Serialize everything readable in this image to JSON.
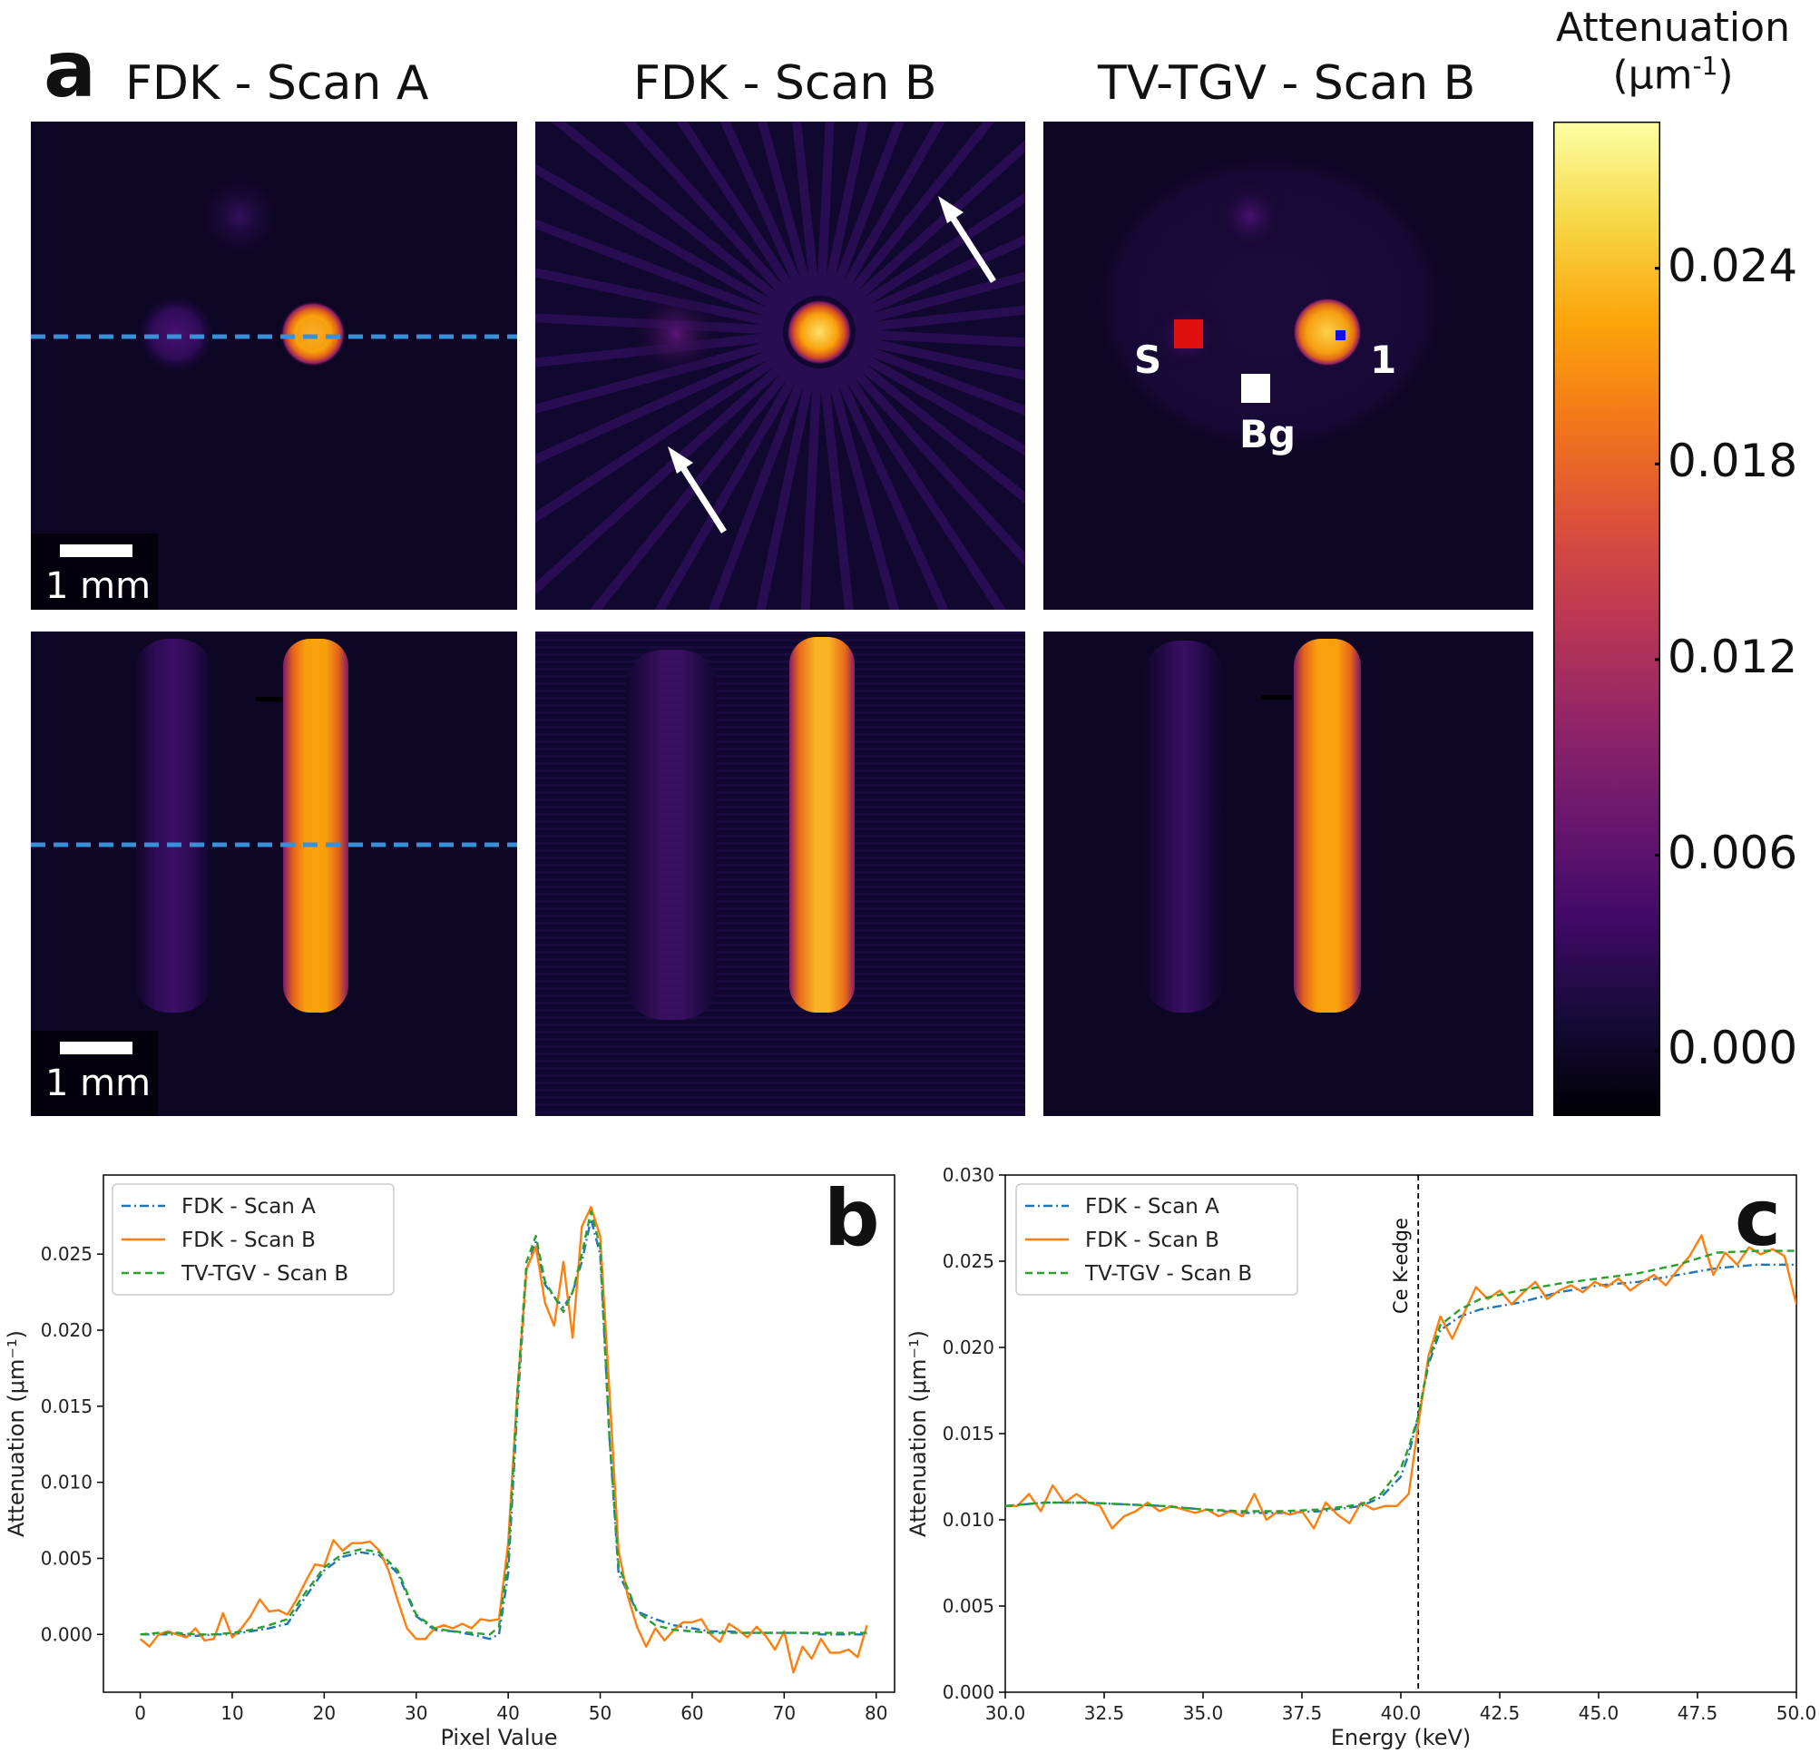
{
  "panel_a": {
    "letter": "a",
    "titles": [
      "FDK - Scan A",
      "FDK - Scan B",
      "TV-TGV - Scan B"
    ],
    "scale_bar_label": "1 mm",
    "roi_labels": {
      "sample": "S",
      "one": "1",
      "background": "Bg"
    },
    "colorbar": {
      "title_line1": "Attenuation",
      "title_line2": "(μm",
      "title_sup": "-1",
      "title_close": ")",
      "ticks": [
        "0.024",
        "0.018",
        "0.012",
        "0.006",
        "0.000"
      ],
      "tick_values": [
        0.024,
        0.018,
        0.012,
        0.006,
        0.0
      ],
      "range": [
        -0.002,
        0.0285
      ],
      "colormap": "inferno"
    },
    "colors": {
      "profile_line": "#3a8fd6",
      "roi_sample": "#e01010",
      "roi_one": "#1010e0",
      "roi_bg": "#ffffff"
    }
  },
  "chart_data": [
    {
      "panel": "b",
      "type": "line",
      "title": "",
      "xlabel": "Pixel Value",
      "ylabel": "Attenuation (μm⁻¹)",
      "xlim": [
        -4,
        82
      ],
      "ylim": [
        -0.0038,
        0.0302
      ],
      "xticks": [
        0,
        10,
        20,
        30,
        40,
        50,
        60,
        70,
        80
      ],
      "xtick_labels": [
        "0",
        "10",
        "20",
        "30",
        "40",
        "50",
        "60",
        "70",
        "80"
      ],
      "yticks": [
        0.0,
        0.005,
        0.01,
        0.015,
        0.02,
        0.025
      ],
      "ytick_labels": [
        "0.000",
        "0.005",
        "0.010",
        "0.015",
        "0.020",
        "0.025"
      ],
      "legend_position": "top-left",
      "series": [
        {
          "name": "FDK - Scan A",
          "color": "#1f77b4",
          "dash": "dashdot",
          "x": [
            0,
            2,
            4,
            6,
            8,
            10,
            12,
            14,
            16,
            18,
            20,
            22,
            24,
            26,
            28,
            30,
            32,
            34,
            36,
            38,
            39,
            40,
            41,
            42,
            43,
            44,
            45,
            46,
            47,
            48,
            49,
            50,
            51,
            52,
            54,
            56,
            58,
            60,
            62,
            64,
            66,
            68,
            70,
            72,
            74,
            76,
            78,
            79
          ],
          "y": [
            0.0,
            0.0,
            0.0,
            -0.0001,
            0.0,
            0.0,
            0.0002,
            0.0004,
            0.0007,
            0.0025,
            0.0042,
            0.0051,
            0.0054,
            0.0052,
            0.004,
            0.0012,
            0.0003,
            0.0002,
            0.0,
            -0.0003,
            0.0,
            0.004,
            0.015,
            0.024,
            0.0258,
            0.023,
            0.0222,
            0.0215,
            0.0225,
            0.0245,
            0.0273,
            0.025,
            0.013,
            0.004,
            0.0015,
            0.001,
            0.0006,
            0.0004,
            0.0002,
            0.0002,
            0.0001,
            0.0001,
            0.0001,
            0.0001,
            0.0,
            0.0,
            0.0,
            0.0
          ]
        },
        {
          "name": "FDK - Scan B",
          "color": "#ff7f0e",
          "dash": "solid",
          "x": [
            0,
            1,
            2,
            3,
            4,
            5,
            6,
            7,
            8,
            9,
            10,
            11,
            12,
            13,
            14,
            15,
            16,
            17,
            18,
            19,
            20,
            21,
            22,
            23,
            24,
            25,
            26,
            27,
            28,
            29,
            30,
            31,
            32,
            33,
            34,
            35,
            36,
            37,
            38,
            39,
            40,
            41,
            42,
            43,
            44,
            45,
            46,
            47,
            48,
            49,
            50,
            51,
            52,
            53,
            54,
            55,
            56,
            57,
            58,
            59,
            60,
            61,
            62,
            63,
            64,
            65,
            66,
            67,
            68,
            69,
            70,
            71,
            72,
            73,
            74,
            75,
            76,
            77,
            78,
            79
          ],
          "y": [
            -0.0003,
            -0.0008,
            0.0,
            0.0002,
            0.0,
            -0.0002,
            0.0004,
            -0.0004,
            -0.0003,
            0.0014,
            -0.0002,
            0.0004,
            0.0012,
            0.0023,
            0.0015,
            0.0016,
            0.0013,
            0.0023,
            0.0035,
            0.0046,
            0.0045,
            0.0062,
            0.0055,
            0.006,
            0.006,
            0.0061,
            0.0055,
            0.0042,
            0.0022,
            0.0004,
            -0.0003,
            -0.0003,
            0.0004,
            0.0006,
            0.0004,
            0.0007,
            0.0004,
            0.001,
            0.0009,
            0.001,
            0.006,
            0.016,
            0.024,
            0.0255,
            0.0218,
            0.0203,
            0.0245,
            0.0195,
            0.0268,
            0.0281,
            0.0262,
            0.016,
            0.0055,
            0.0025,
            0.0005,
            -0.0008,
            0.0004,
            -0.0004,
            0.0003,
            0.0008,
            0.0008,
            0.001,
            0.0,
            -0.0005,
            0.0007,
            0.0003,
            -0.0002,
            0.0005,
            -0.0001,
            -0.001,
            0.0002,
            -0.0025,
            -0.0008,
            -0.0016,
            -0.0003,
            -0.0012,
            -0.0012,
            -0.001,
            -0.0015,
            0.0006
          ]
        },
        {
          "name": "TV-TGV - Scan B",
          "color": "#2ca02c",
          "dash": "dashed",
          "x": [
            0,
            2,
            4,
            6,
            8,
            10,
            12,
            14,
            16,
            18,
            20,
            22,
            24,
            26,
            28,
            30,
            32,
            34,
            36,
            38,
            39,
            40,
            41,
            42,
            43,
            44,
            45,
            46,
            47,
            48,
            49,
            50,
            51,
            52,
            54,
            56,
            58,
            60,
            62,
            64,
            66,
            68,
            70,
            72,
            74,
            76,
            78,
            79
          ],
          "y": [
            0.0,
            0.0001,
            0.0001,
            0.0,
            0.0,
            0.0001,
            0.0003,
            0.0006,
            0.001,
            0.0028,
            0.0044,
            0.0053,
            0.0056,
            0.0054,
            0.0042,
            0.0013,
            0.0004,
            0.0002,
            0.0001,
            0.0,
            0.0005,
            0.005,
            0.016,
            0.0245,
            0.0262,
            0.0232,
            0.0222,
            0.0212,
            0.0225,
            0.025,
            0.0278,
            0.0255,
            0.013,
            0.0045,
            0.0015,
            0.0006,
            0.0003,
            0.0002,
            0.0001,
            0.0001,
            0.0001,
            0.0001,
            0.0001,
            0.0001,
            0.0001,
            0.0001,
            0.0001,
            0.0001
          ]
        }
      ]
    },
    {
      "panel": "c",
      "type": "line",
      "title": "",
      "xlabel": "Energy (keV)",
      "ylabel": "Attenuation (μm⁻¹)",
      "xlim": [
        30.0,
        50.0
      ],
      "ylim": [
        0.0,
        0.03
      ],
      "xticks": [
        30.0,
        32.5,
        35.0,
        37.5,
        40.0,
        42.5,
        45.0,
        47.5,
        50.0
      ],
      "xtick_labels": [
        "30.0",
        "32.5",
        "35.0",
        "37.5",
        "40.0",
        "42.5",
        "45.0",
        "47.5",
        "50.0"
      ],
      "yticks": [
        0.0,
        0.005,
        0.01,
        0.015,
        0.02,
        0.025,
        0.03
      ],
      "ytick_labels": [
        "0.000",
        "0.005",
        "0.010",
        "0.015",
        "0.020",
        "0.025",
        "0.030"
      ],
      "legend_position": "top-left",
      "vline": {
        "x": 40.44,
        "label": "Ce K-edge"
      },
      "series": [
        {
          "name": "FDK - Scan A",
          "color": "#1f77b4",
          "dash": "dashdot",
          "x": [
            30,
            31,
            32,
            33,
            34,
            35,
            36,
            37,
            38,
            39,
            39.5,
            40,
            40.2,
            40.44,
            40.7,
            41,
            41.5,
            42,
            43,
            44,
            45,
            46,
            47,
            48,
            49,
            50
          ],
          "y": [
            0.0108,
            0.011,
            0.011,
            0.0109,
            0.0108,
            0.0106,
            0.0104,
            0.0104,
            0.0105,
            0.0108,
            0.0113,
            0.0125,
            0.0138,
            0.016,
            0.019,
            0.021,
            0.0218,
            0.0222,
            0.0226,
            0.0232,
            0.0236,
            0.0238,
            0.0242,
            0.0246,
            0.0248,
            0.0248
          ]
        },
        {
          "name": "FDK - Scan B",
          "color": "#ff7f0e",
          "dash": "solid",
          "x": [
            30,
            30.3,
            30.6,
            30.9,
            31.2,
            31.5,
            31.8,
            32.1,
            32.4,
            32.7,
            33,
            33.3,
            33.6,
            33.9,
            34.2,
            34.5,
            34.8,
            35.1,
            35.4,
            35.7,
            36,
            36.3,
            36.6,
            36.9,
            37.2,
            37.5,
            37.8,
            38.1,
            38.4,
            38.7,
            39,
            39.3,
            39.6,
            39.9,
            40.2,
            40.44,
            40.7,
            41,
            41.3,
            41.6,
            41.9,
            42.2,
            42.5,
            42.8,
            43.1,
            43.4,
            43.7,
            44,
            44.3,
            44.6,
            44.9,
            45.2,
            45.5,
            45.8,
            46.1,
            46.4,
            46.7,
            47,
            47.3,
            47.6,
            47.9,
            48.2,
            48.5,
            48.8,
            49.1,
            49.4,
            49.7,
            50
          ],
          "y": [
            0.0108,
            0.0108,
            0.0115,
            0.0105,
            0.012,
            0.011,
            0.0115,
            0.011,
            0.0108,
            0.0095,
            0.0102,
            0.0105,
            0.011,
            0.0105,
            0.0108,
            0.0106,
            0.0104,
            0.0106,
            0.0102,
            0.0105,
            0.0102,
            0.0115,
            0.01,
            0.0105,
            0.0103,
            0.0105,
            0.0095,
            0.011,
            0.0103,
            0.0098,
            0.011,
            0.0106,
            0.0108,
            0.0108,
            0.0115,
            0.0155,
            0.0195,
            0.0218,
            0.0205,
            0.022,
            0.0235,
            0.0228,
            0.0233,
            0.0225,
            0.0232,
            0.0238,
            0.0228,
            0.0233,
            0.0236,
            0.0232,
            0.0238,
            0.0235,
            0.024,
            0.0233,
            0.0238,
            0.0242,
            0.0236,
            0.0245,
            0.0253,
            0.0265,
            0.0242,
            0.0255,
            0.0248,
            0.0258,
            0.0254,
            0.0257,
            0.0253,
            0.0225
          ]
        },
        {
          "name": "TV-TGV - Scan B",
          "color": "#2ca02c",
          "dash": "dashed",
          "x": [
            30,
            31,
            32,
            33,
            34,
            35,
            36,
            37,
            38,
            39,
            39.5,
            40,
            40.2,
            40.44,
            40.7,
            41,
            41.5,
            42,
            43,
            44,
            45,
            46,
            47,
            48,
            49,
            50
          ],
          "y": [
            0.0108,
            0.011,
            0.011,
            0.0109,
            0.0108,
            0.0106,
            0.0105,
            0.0105,
            0.0106,
            0.0109,
            0.0115,
            0.013,
            0.0142,
            0.016,
            0.0192,
            0.0213,
            0.0222,
            0.0228,
            0.0233,
            0.0237,
            0.024,
            0.0243,
            0.0248,
            0.0255,
            0.0256,
            0.0256
          ]
        }
      ]
    }
  ],
  "panel_b": {
    "letter": "b"
  },
  "panel_c": {
    "letter": "c"
  }
}
